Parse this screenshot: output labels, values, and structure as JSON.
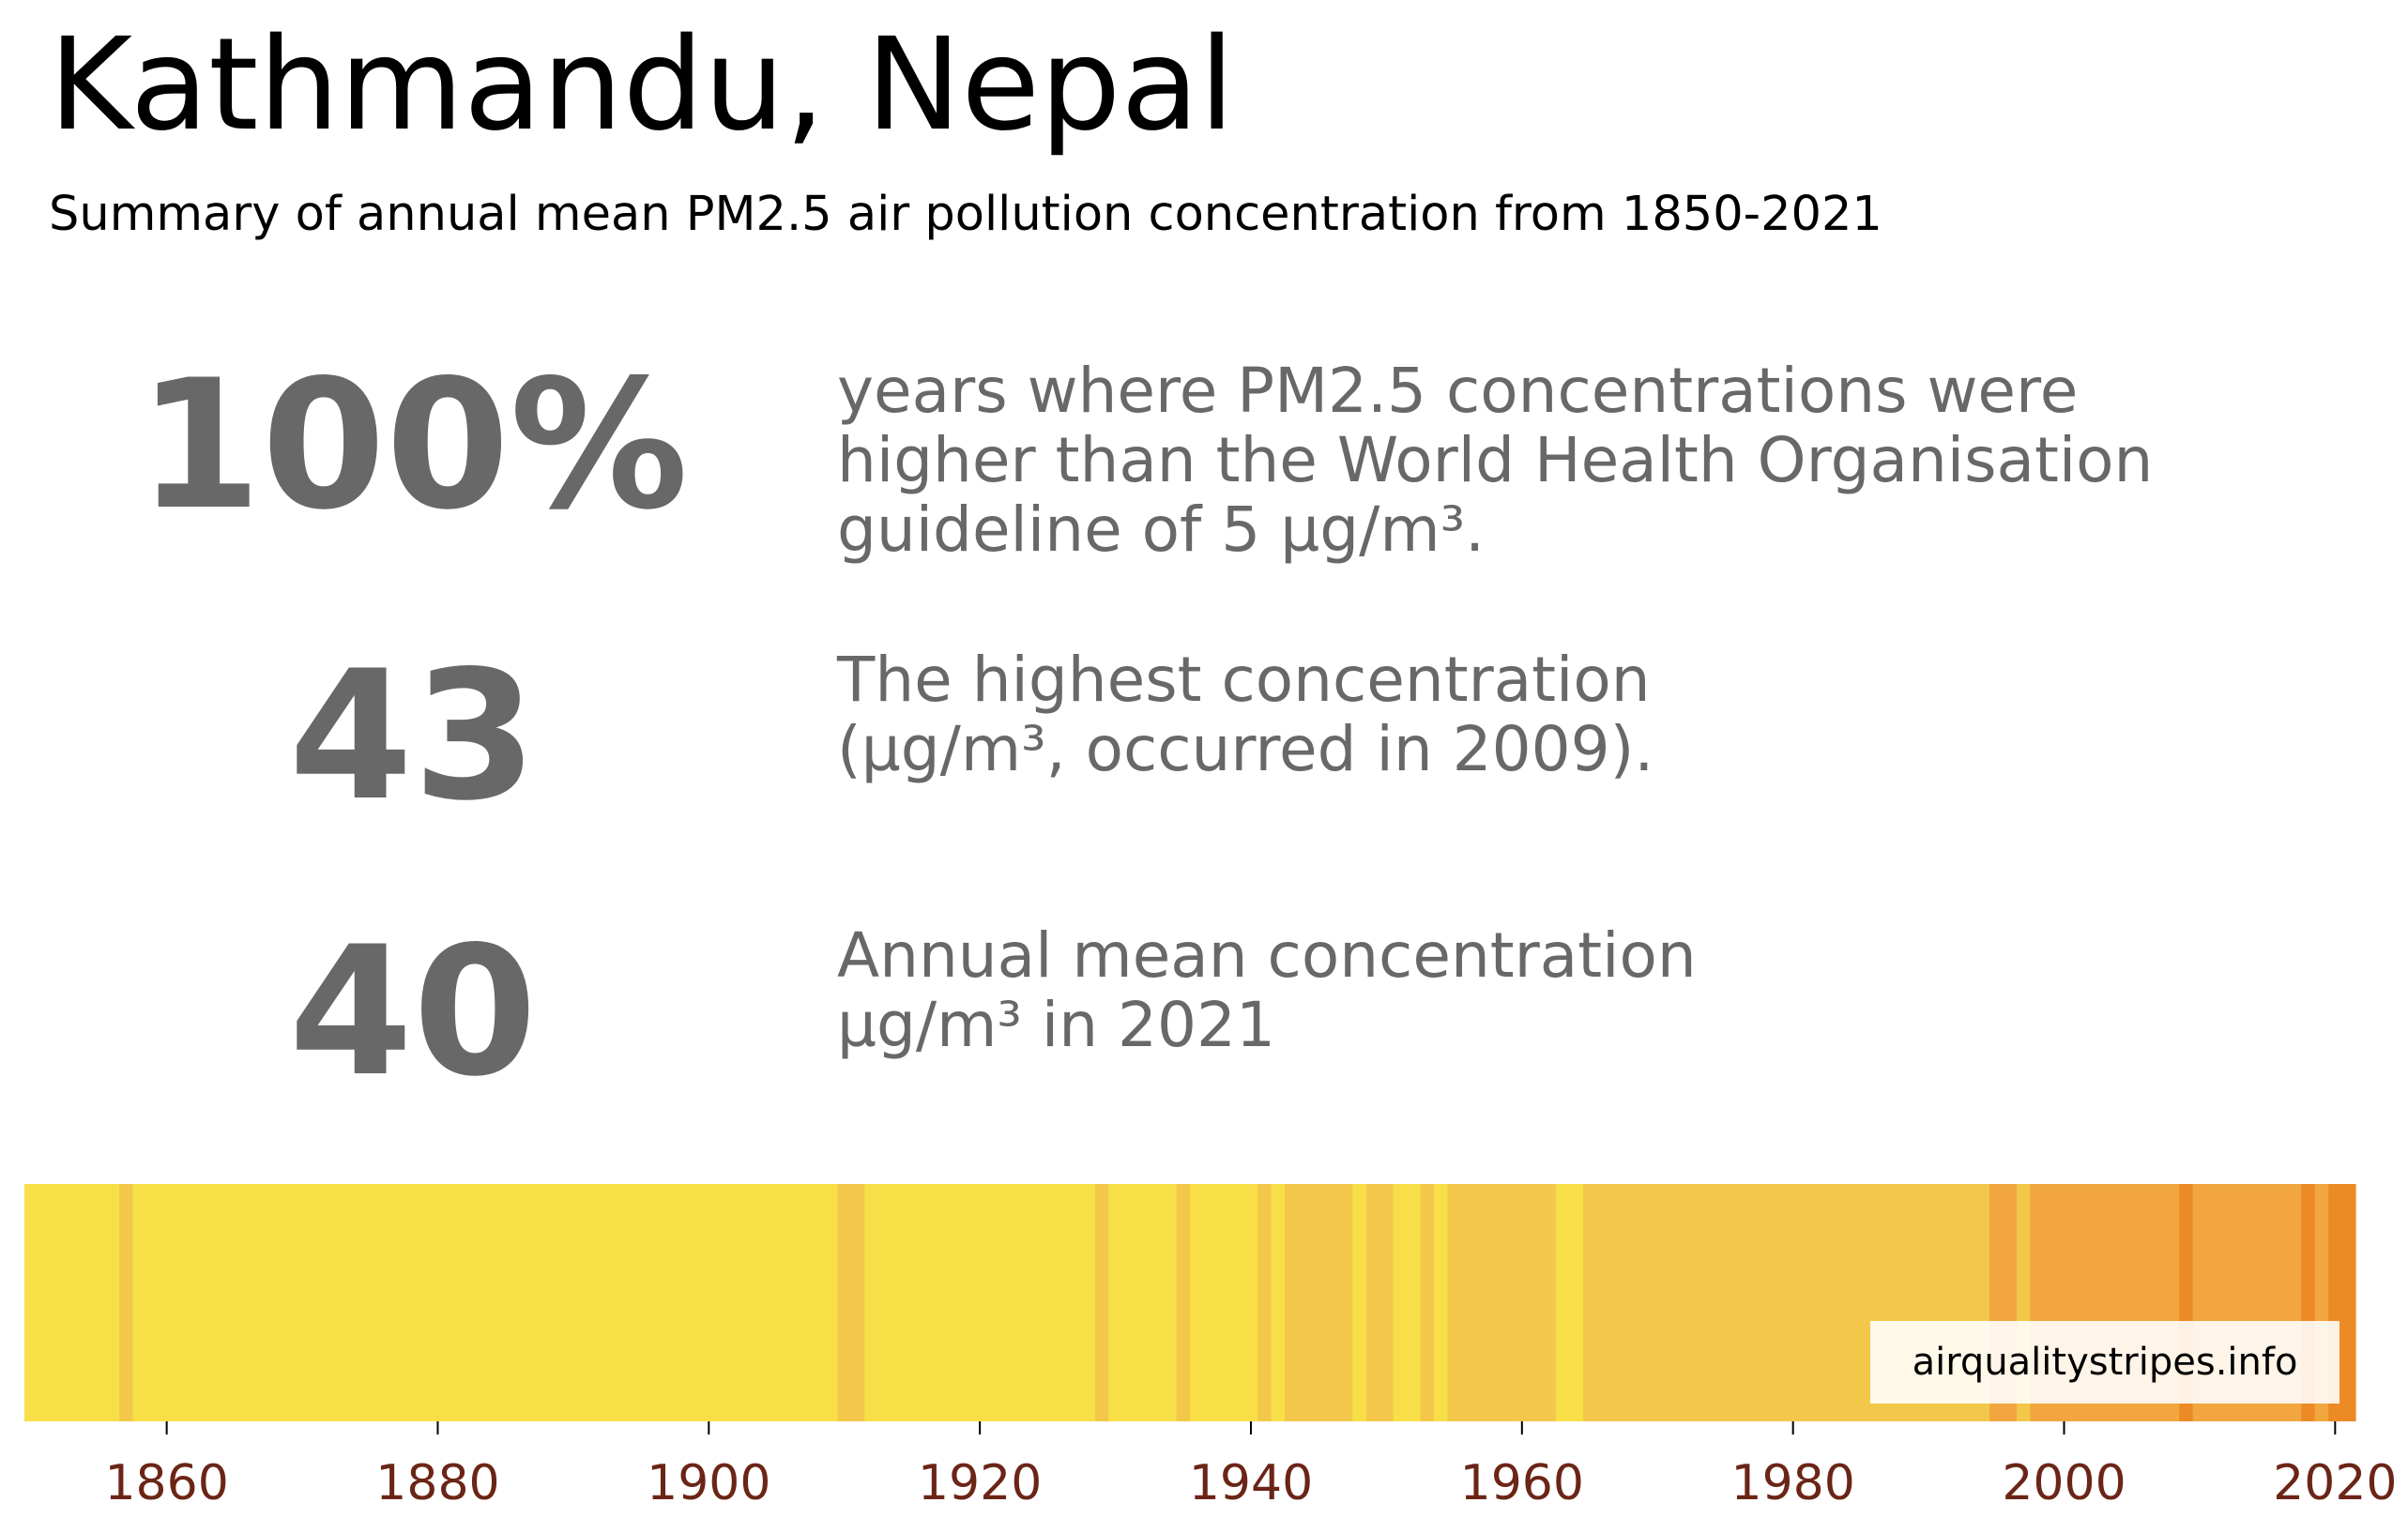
{
  "header": {
    "title": "Kathmandu, Nepal",
    "subtitle": "Summary of annual mean PM2.5 air pollution concentration from 1850-2021"
  },
  "stats": [
    {
      "value": "100%",
      "lines": [
        "years where PM2.5 concentrations were",
        "higher than the World Health Organisation",
        "guideline of 5 µg/m³."
      ]
    },
    {
      "value": "43",
      "lines": [
        "The highest concentration",
        "(µg/m³, occurred in 2009)."
      ]
    },
    {
      "value": "40",
      "lines": [
        "Annual mean concentration",
        "µg/m³ in 2021"
      ]
    }
  ],
  "source": "airqualitystripes.info",
  "colors": {
    "level_1": "#f8df48",
    "level_2": "#f3c84a",
    "level_3": "#f1a640",
    "level_4": "#ec8a25",
    "text_stat": "#686868",
    "tick_label": "#6b2516"
  },
  "chart_data": {
    "type": "heatmap",
    "title": "",
    "xlabel": "",
    "ylabel": "",
    "x_range": [
      1850,
      2021
    ],
    "ticks": [
      1860,
      1880,
      1900,
      1920,
      1940,
      1960,
      1980,
      2000,
      2020
    ],
    "grid": false,
    "runs": [
      {
        "start": 1850,
        "end": 1856,
        "level": 1
      },
      {
        "start": 1857,
        "end": 1857,
        "level": 2
      },
      {
        "start": 1858,
        "end": 1909,
        "level": 1
      },
      {
        "start": 1910,
        "end": 1911,
        "level": 2
      },
      {
        "start": 1912,
        "end": 1928,
        "level": 1
      },
      {
        "start": 1929,
        "end": 1929,
        "level": 2
      },
      {
        "start": 1930,
        "end": 1934,
        "level": 1
      },
      {
        "start": 1935,
        "end": 1935,
        "level": 2
      },
      {
        "start": 1936,
        "end": 1940,
        "level": 1
      },
      {
        "start": 1941,
        "end": 1941,
        "level": 2
      },
      {
        "start": 1942,
        "end": 1942,
        "level": 1
      },
      {
        "start": 1943,
        "end": 1947,
        "level": 2
      },
      {
        "start": 1948,
        "end": 1948,
        "level": 1
      },
      {
        "start": 1949,
        "end": 1950,
        "level": 2
      },
      {
        "start": 1951,
        "end": 1952,
        "level": 1
      },
      {
        "start": 1953,
        "end": 1953,
        "level": 2
      },
      {
        "start": 1954,
        "end": 1954,
        "level": 1
      },
      {
        "start": 1955,
        "end": 1962,
        "level": 2
      },
      {
        "start": 1963,
        "end": 1964,
        "level": 1
      },
      {
        "start": 1965,
        "end": 1994,
        "level": 2
      },
      {
        "start": 1995,
        "end": 1996,
        "level": 3
      },
      {
        "start": 1997,
        "end": 1997,
        "level": 2
      },
      {
        "start": 1998,
        "end": 2008,
        "level": 3
      },
      {
        "start": 2009,
        "end": 2009,
        "level": 4
      },
      {
        "start": 2010,
        "end": 2017,
        "level": 3
      },
      {
        "start": 2018,
        "end": 2018,
        "level": 4
      },
      {
        "start": 2019,
        "end": 2019,
        "level": 3
      },
      {
        "start": 2020,
        "end": 2021,
        "level": 4
      }
    ]
  }
}
